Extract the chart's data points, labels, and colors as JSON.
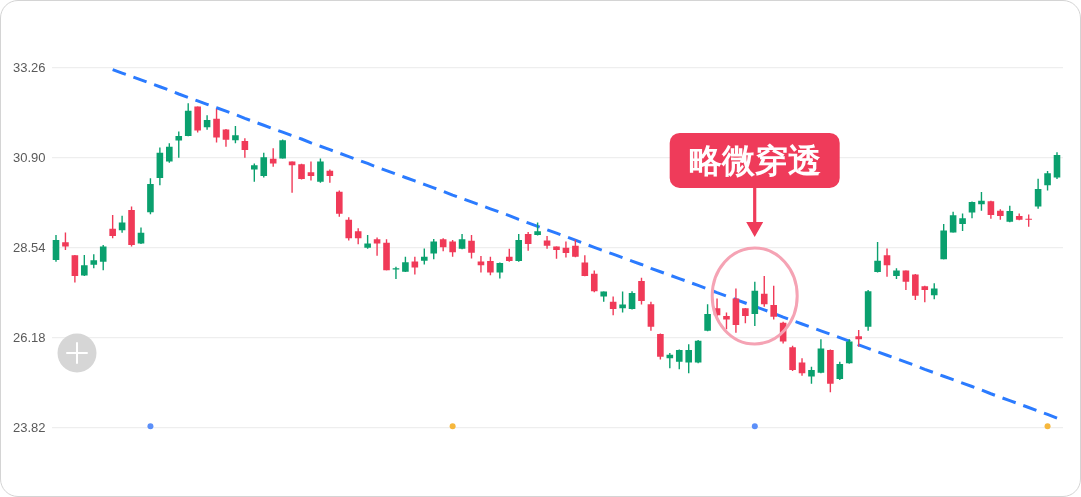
{
  "chart_data": {
    "type": "candlestick",
    "categories": [
      null,
      null,
      null,
      null,
      null,
      null,
      null,
      null,
      null,
      null,
      null,
      null,
      null,
      null,
      null,
      null,
      null,
      null,
      null,
      null,
      null,
      null,
      null,
      null,
      null,
      null,
      null,
      null,
      null,
      null,
      null,
      null,
      null,
      null,
      null,
      null,
      null,
      null,
      null,
      null,
      null,
      null,
      null,
      null,
      null,
      null,
      null,
      null,
      null,
      null,
      null,
      null,
      null,
      null,
      null,
      null,
      null,
      null,
      null,
      null,
      null,
      null,
      null,
      null,
      null,
      null,
      null,
      null,
      null,
      null,
      null,
      null,
      null,
      null,
      null,
      null,
      null,
      null,
      null,
      null,
      null,
      null,
      null,
      null,
      null,
      null,
      null,
      null,
      null,
      null,
      null,
      null,
      null,
      null,
      null,
      null,
      null,
      null,
      null,
      null,
      null,
      null,
      null,
      null,
      null,
      null,
      null
    ],
    "ohlc": [
      [
        28.22,
        28.87,
        28.17,
        28.74
      ],
      [
        28.68,
        28.94,
        28.48,
        28.57
      ],
      [
        28.34,
        28.35,
        27.63,
        27.8
      ],
      [
        27.81,
        28.35,
        27.8,
        28.08
      ],
      [
        28.09,
        28.37,
        28.0,
        28.21
      ],
      [
        28.17,
        28.61,
        27.95,
        28.57
      ],
      [
        29.04,
        29.4,
        28.79,
        28.85
      ],
      [
        29.0,
        29.38,
        28.93,
        29.2
      ],
      [
        29.53,
        29.62,
        28.57,
        28.61
      ],
      [
        28.65,
        29.07,
        28.64,
        28.93
      ],
      [
        29.47,
        30.36,
        29.42,
        30.21
      ],
      [
        30.37,
        31.17,
        30.18,
        31.03
      ],
      [
        30.8,
        31.28,
        30.77,
        31.19
      ],
      [
        31.35,
        31.59,
        30.9,
        31.47
      ],
      [
        31.47,
        32.33,
        31.46,
        32.13
      ],
      [
        32.24,
        32.25,
        31.56,
        31.61
      ],
      [
        31.7,
        32.01,
        31.63,
        31.89
      ],
      [
        31.92,
        32.18,
        31.3,
        31.43
      ],
      [
        31.64,
        31.65,
        31.19,
        31.37
      ],
      [
        31.36,
        31.73,
        31.28,
        31.49
      ],
      [
        31.34,
        31.41,
        30.9,
        31.1
      ],
      [
        30.59,
        30.75,
        30.27,
        30.7
      ],
      [
        30.42,
        31.03,
        30.38,
        30.91
      ],
      [
        30.87,
        31.15,
        30.66,
        30.75
      ],
      [
        30.88,
        31.38,
        30.87,
        31.36
      ],
      [
        30.8,
        30.81,
        29.98,
        30.7
      ],
      [
        30.73,
        30.74,
        30.33,
        30.34
      ],
      [
        30.52,
        30.8,
        30.3,
        30.42
      ],
      [
        30.27,
        30.88,
        30.24,
        30.8
      ],
      [
        30.56,
        30.59,
        30.24,
        30.42
      ],
      [
        30.01,
        30.04,
        29.35,
        29.43
      ],
      [
        29.27,
        29.34,
        28.73,
        28.79
      ],
      [
        28.97,
        29.05,
        28.63,
        28.79
      ],
      [
        28.54,
        28.87,
        28.51,
        28.65
      ],
      [
        28.76,
        28.81,
        28.33,
        28.65
      ],
      [
        28.67,
        28.76,
        27.94,
        27.95
      ],
      [
        27.97,
        28.04,
        27.72,
        28.0
      ],
      [
        27.91,
        28.3,
        27.9,
        28.16
      ],
      [
        28.18,
        28.3,
        27.84,
        28.02
      ],
      [
        28.2,
        28.52,
        28.1,
        28.3
      ],
      [
        28.39,
        28.77,
        28.24,
        28.7
      ],
      [
        28.76,
        28.79,
        28.45,
        28.55
      ],
      [
        28.7,
        28.74,
        28.3,
        28.42
      ],
      [
        28.51,
        28.9,
        28.5,
        28.76
      ],
      [
        28.72,
        28.87,
        28.26,
        28.41
      ],
      [
        28.18,
        28.32,
        27.89,
        28.08
      ],
      [
        28.19,
        28.3,
        27.82,
        27.89
      ],
      [
        27.89,
        28.15,
        27.73,
        28.14
      ],
      [
        28.3,
        28.51,
        28.17,
        28.19
      ],
      [
        28.19,
        28.9,
        28.17,
        28.74
      ],
      [
        28.9,
        28.95,
        28.46,
        28.64
      ],
      [
        28.87,
        29.2,
        28.86,
        28.97
      ],
      [
        28.73,
        28.85,
        28.51,
        28.59
      ],
      [
        28.57,
        28.58,
        28.25,
        28.48
      ],
      [
        28.54,
        28.7,
        28.28,
        28.4
      ],
      [
        28.59,
        28.75,
        28.29,
        28.3
      ],
      [
        28.15,
        28.34,
        27.79,
        27.8
      ],
      [
        27.86,
        27.94,
        27.37,
        27.4
      ],
      [
        27.26,
        27.4,
        27.12,
        27.39
      ],
      [
        27.12,
        27.26,
        26.77,
        26.93
      ],
      [
        26.95,
        27.39,
        26.84,
        27.05
      ],
      [
        26.93,
        27.4,
        26.92,
        27.35
      ],
      [
        27.67,
        27.75,
        27.05,
        27.14
      ],
      [
        27.06,
        27.12,
        26.36,
        26.47
      ],
      [
        26.28,
        26.29,
        25.61,
        25.68
      ],
      [
        25.64,
        25.78,
        25.38,
        25.73
      ],
      [
        25.55,
        25.87,
        25.35,
        25.86
      ],
      [
        25.53,
        26.01,
        25.25,
        25.86
      ],
      [
        25.53,
        26.12,
        25.51,
        26.1
      ],
      [
        26.36,
        27.06,
        26.35,
        26.8
      ],
      [
        26.95,
        27.21,
        26.69,
        26.77
      ],
      [
        26.75,
        26.84,
        26.4,
        26.66
      ],
      [
        27.21,
        27.47,
        26.31,
        26.51
      ],
      [
        26.95,
        26.96,
        26.56,
        26.75
      ],
      [
        26.8,
        27.65,
        26.49,
        27.41
      ],
      [
        27.33,
        27.8,
        26.99,
        27.06
      ],
      [
        27.04,
        27.54,
        26.66,
        26.73
      ],
      [
        26.57,
        26.6,
        26.03,
        26.08
      ],
      [
        25.93,
        25.97,
        25.31,
        25.33
      ],
      [
        25.53,
        25.64,
        25.18,
        25.25
      ],
      [
        25.16,
        25.42,
        24.97,
        25.33
      ],
      [
        25.26,
        26.14,
        25.25,
        25.9
      ],
      [
        25.86,
        25.87,
        24.75,
        24.97
      ],
      [
        25.1,
        25.55,
        25.07,
        25.49
      ],
      [
        25.51,
        26.14,
        25.5,
        26.08
      ],
      [
        26.22,
        26.38,
        25.94,
        26.14
      ],
      [
        26.47,
        27.43,
        26.36,
        27.4
      ],
      [
        27.9,
        28.69,
        27.89,
        28.2
      ],
      [
        28.34,
        28.52,
        27.78,
        28.08
      ],
      [
        27.8,
        28.0,
        27.72,
        27.94
      ],
      [
        27.94,
        27.95,
        27.43,
        27.65
      ],
      [
        27.84,
        27.85,
        27.17,
        27.28
      ],
      [
        27.53,
        27.54,
        27.11,
        27.43
      ],
      [
        27.29,
        27.61,
        27.19,
        27.47
      ],
      [
        28.24,
        29.16,
        28.23,
        28.99
      ],
      [
        28.94,
        29.48,
        28.93,
        29.39
      ],
      [
        29.16,
        29.44,
        28.98,
        29.31
      ],
      [
        29.46,
        29.75,
        29.31,
        29.74
      ],
      [
        29.68,
        30.0,
        29.51,
        29.77
      ],
      [
        29.76,
        29.77,
        29.3,
        29.4
      ],
      [
        29.51,
        29.55,
        29.27,
        29.37
      ],
      [
        29.22,
        29.64,
        29.21,
        29.5
      ],
      [
        29.37,
        29.44,
        29.26,
        29.27
      ],
      [
        29.3,
        29.41,
        29.09,
        29.27
      ],
      [
        29.62,
        30.35,
        29.56,
        30.08
      ],
      [
        30.18,
        30.55,
        30.04,
        30.49
      ],
      [
        30.38,
        31.04,
        30.34,
        30.97
      ]
    ],
    "colors": [
      "#0aa06e",
      "#f03a58",
      "#f03a58",
      "#0aa06e",
      "#0aa06e",
      "#0aa06e",
      "#f03a58",
      "#0aa06e",
      "#f03a58",
      "#0aa06e",
      "#0aa06e",
      "#0aa06e",
      "#0aa06e",
      "#0aa06e",
      "#0aa06e",
      "#f03a58",
      "#0aa06e",
      "#f03a58",
      "#f03a58",
      "#0aa06e",
      "#f03a58",
      "#0aa06e",
      "#0aa06e",
      "#f03a58",
      "#0aa06e",
      "#f03a58",
      "#f03a58",
      "#f03a58",
      "#0aa06e",
      "#f03a58",
      "#f03a58",
      "#f03a58",
      "#f03a58",
      "#0aa06e",
      "#f03a58",
      "#f03a58",
      "#0aa06e",
      "#0aa06e",
      "#f03a58",
      "#0aa06e",
      "#0aa06e",
      "#f03a58",
      "#f03a58",
      "#0aa06e",
      "#f03a58",
      "#f03a58",
      "#f03a58",
      "#0aa06e",
      "#f03a58",
      "#0aa06e",
      "#f03a58",
      "#0aa06e",
      "#f03a58",
      "#f03a58",
      "#f03a58",
      "#f03a58",
      "#f03a58",
      "#f03a58",
      "#0aa06e",
      "#f03a58",
      "#0aa06e",
      "#0aa06e",
      "#f03a58",
      "#f03a58",
      "#f03a58",
      "#0aa06e",
      "#0aa06e",
      "#0aa06e",
      "#0aa06e",
      "#0aa06e",
      "#f03a58",
      "#f03a58",
      "#f03a58",
      "#f03a58",
      "#0aa06e",
      "#f03a58",
      "#f03a58",
      "#f03a58",
      "#f03a58",
      "#f03a58",
      "#0aa06e",
      "#0aa06e",
      "#f03a58",
      "#0aa06e",
      "#0aa06e",
      "#f03a58",
      "#0aa06e",
      "#0aa06e",
      "#f03a58",
      "#0aa06e",
      "#f03a58",
      "#f03a58",
      "#f03a58",
      "#0aa06e",
      "#0aa06e",
      "#0aa06e",
      "#0aa06e",
      "#0aa06e",
      "#0aa06e",
      "#f03a58",
      "#f03a58",
      "#0aa06e",
      "#f03a58",
      "#f03a58",
      "#0aa06e",
      "#0aa06e",
      "#0aa06e"
    ],
    "series": [
      {
        "type": "line",
        "color": "#2b7bff",
        "line_style": "dashed",
        "values": [
          null,
          null,
          null,
          null,
          null,
          null,
          33.21,
          33.12,
          33.03,
          32.94,
          32.85,
          32.76,
          32.67,
          32.57,
          32.48,
          32.39,
          32.3,
          32.21,
          32.12,
          32.03,
          31.93,
          31.84,
          31.75,
          31.66,
          31.57,
          31.48,
          31.39,
          31.29,
          31.2,
          31.11,
          31.02,
          30.93,
          30.84,
          30.75,
          30.65,
          30.56,
          30.47,
          30.38,
          30.29,
          30.2,
          30.11,
          30.02,
          29.92,
          29.83,
          29.74,
          29.65,
          29.56,
          29.47,
          29.38,
          29.28,
          29.19,
          29.1,
          29.01,
          28.92,
          28.83,
          28.74,
          28.64,
          28.55,
          28.46,
          28.37,
          28.28,
          28.19,
          28.1,
          28.0,
          27.91,
          27.82,
          27.73,
          27.64,
          27.55,
          27.46,
          27.36,
          27.27,
          27.18,
          27.09,
          27.0,
          26.91,
          26.82,
          26.72,
          26.63,
          26.54,
          26.45,
          26.36,
          26.27,
          26.18,
          26.09,
          25.99,
          25.9,
          25.81,
          25.72,
          25.63,
          25.54,
          25.45,
          25.35,
          25.26,
          25.17,
          25.08,
          24.99,
          24.9,
          24.81,
          24.71,
          24.62,
          24.53,
          24.44,
          24.35,
          24.26,
          24.17,
          24.07
        ]
      }
    ],
    "ylim": [
      23.82,
      33.26
    ],
    "yticks": [
      23.82,
      26.18,
      28.54,
      {
        "value": 30.9,
        "label": "30.90"
      },
      33.26
    ],
    "grid": "y",
    "tick_labels": "y",
    "annotations": [
      "略微穿透"
    ]
  }
}
